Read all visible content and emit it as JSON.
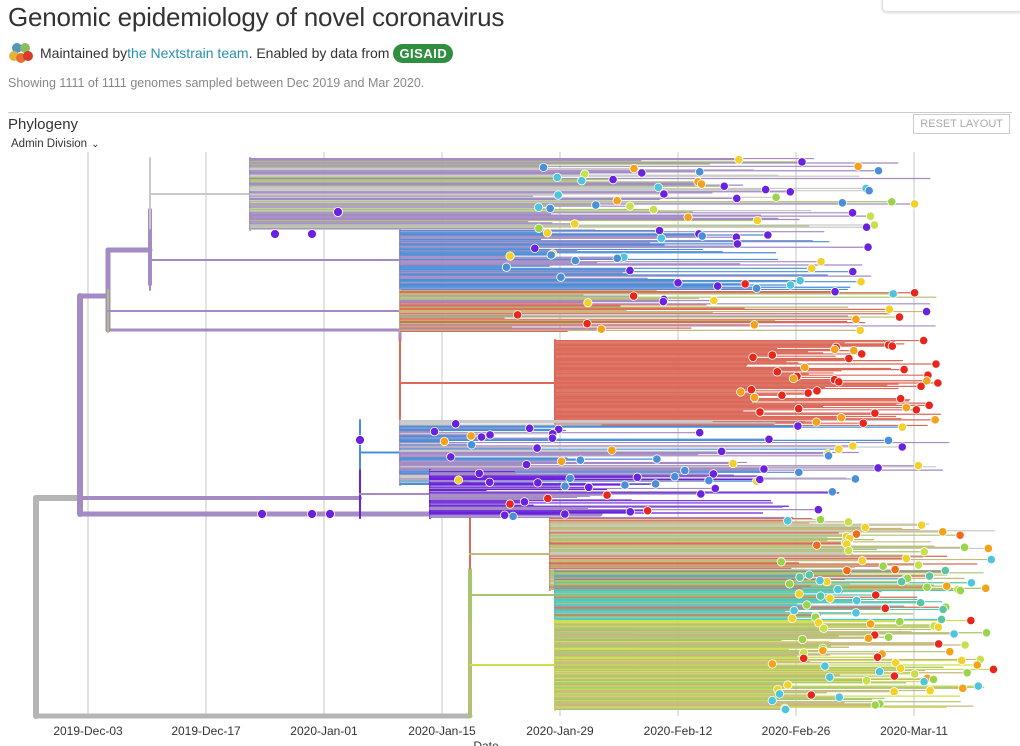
{
  "header": {
    "title": "Genomic epidemiology of novel coronavirus",
    "byline_prefix": "Maintained by ",
    "byline_link": "the Nextstrain team",
    "byline_mid": ". Enabled by data from",
    "gisaid_label": "GISAID",
    "subtitle": "Showing 1111 of 1111 genomes sampled between Dec 2019 and Mar 2020."
  },
  "panel": {
    "title": "Phylogeny",
    "reset_label": "RESET LAYOUT",
    "color_by": "Admin Division"
  },
  "chart_data": {
    "type": "scatter",
    "title": "",
    "xlabel": "Date",
    "ylabel": "",
    "x_ticks": [
      "2019-Dec-03",
      "2019-Dec-17",
      "2020-Jan-01",
      "2020-Jan-15",
      "2020-Jan-29",
      "2020-Feb-12",
      "2020-Feb-26",
      "2020-Mar-11"
    ],
    "grid": true,
    "legend": "none",
    "tip_count": 1111,
    "palette": {
      "tree_root": "#b5b5b5",
      "china_clade": "#a48bc4",
      "purple_tip": "#6a21e0",
      "blue": "#4a8fd8",
      "cyan": "#4fc4dd",
      "teal": "#58c6a4",
      "yellowgreen": "#c8e04a",
      "green": "#9ad44a",
      "yellow": "#f2d22a",
      "orange": "#f4a21a",
      "darkorange": "#f06a1c",
      "red": "#e8261c",
      "salmon": "#dc6a5a",
      "olive": "#a9c46e",
      "tan": "#c8b87c",
      "grey": "#c9c9c9"
    }
  }
}
